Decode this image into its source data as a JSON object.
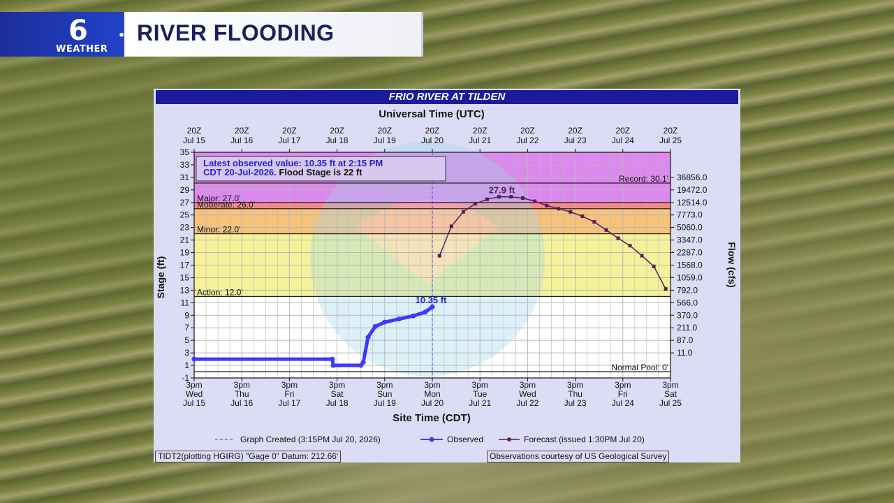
{
  "banner": {
    "logo_number": "6",
    "logo_word": "WEATHER",
    "title": "RIVER FLOODING"
  },
  "panel": {
    "title": "FRIO RIVER AT TILDEN",
    "utc_title": "Universal Time (UTC)",
    "site_time_title": "Site Time (CDT)",
    "footer_left": "TIDT2(plotting HGIRG) \"Gage 0\" Datum: 212.66'",
    "footer_right": "Observations courtesy of US Geological Survey",
    "info_line1": "Latest observed value: 10.35 ft at 2:15 PM",
    "info_line2a": "CDT 20-Jul-2026.",
    "info_line2b": " Flood Stage is 22 ft"
  },
  "chart_data": {
    "type": "line",
    "ylabel": "Stage (ft)",
    "y2label": "Flow (cfs)",
    "ylim": [
      -1,
      35
    ],
    "y_ticks": [
      -1,
      1,
      3,
      5,
      7,
      9,
      11,
      13,
      15,
      17,
      19,
      21,
      23,
      25,
      27,
      29,
      31,
      33,
      35
    ],
    "xlim_days": [
      "Jul 15 3pm",
      "Jul 25 3pm"
    ],
    "top_ticks": [
      {
        "top": "20Z",
        "bottom": "Jul 15"
      },
      {
        "top": "20Z",
        "bottom": "Jul 16"
      },
      {
        "top": "20Z",
        "bottom": "Jul 17"
      },
      {
        "top": "20Z",
        "bottom": "Jul 18"
      },
      {
        "top": "20Z",
        "bottom": "Jul 19"
      },
      {
        "top": "20Z",
        "bottom": "Jul 20"
      },
      {
        "top": "20Z",
        "bottom": "Jul 21"
      },
      {
        "top": "20Z",
        "bottom": "Jul 22"
      },
      {
        "top": "20Z",
        "bottom": "Jul 23"
      },
      {
        "top": "20Z",
        "bottom": "Jul 24"
      },
      {
        "top": "20Z",
        "bottom": "Jul 25"
      }
    ],
    "bottom_ticks": [
      {
        "time": "3pm",
        "day": "Wed",
        "date": "Jul 15"
      },
      {
        "time": "3pm",
        "day": "Thu",
        "date": "Jul 16"
      },
      {
        "time": "3pm",
        "day": "Fri",
        "date": "Jul 17"
      },
      {
        "time": "3pm",
        "day": "Sat",
        "date": "Jul 18"
      },
      {
        "time": "3pm",
        "day": "Sun",
        "date": "Jul 19"
      },
      {
        "time": "3pm",
        "day": "Mon",
        "date": "Jul 20"
      },
      {
        "time": "3pm",
        "day": "Tue",
        "date": "Jul 21"
      },
      {
        "time": "3pm",
        "day": "Wed",
        "date": "Jul 22"
      },
      {
        "time": "3pm",
        "day": "Thu",
        "date": "Jul 23"
      },
      {
        "time": "3pm",
        "day": "Fri",
        "date": "Jul 24"
      },
      {
        "time": "3pm",
        "day": "Sat",
        "date": "Jul 25"
      }
    ],
    "flow_ticks": [
      {
        "stage": 31,
        "label": "36856.0"
      },
      {
        "stage": 29,
        "label": "19472.0"
      },
      {
        "stage": 27,
        "label": "12514.0"
      },
      {
        "stage": 25,
        "label": "7773.0"
      },
      {
        "stage": 23,
        "label": "5060.0"
      },
      {
        "stage": 21,
        "label": "3347.0"
      },
      {
        "stage": 19,
        "label": "2287.0"
      },
      {
        "stage": 17,
        "label": "1568.0"
      },
      {
        "stage": 15,
        "label": "1059.0"
      },
      {
        "stage": 13,
        "label": "792.0"
      },
      {
        "stage": 11,
        "label": "566.0"
      },
      {
        "stage": 9,
        "label": "370.0"
      },
      {
        "stage": 7,
        "label": "211.0"
      },
      {
        "stage": 5,
        "label": "87.0"
      },
      {
        "stage": 3,
        "label": "11.0"
      }
    ],
    "categories_bands": [
      {
        "name": "Action",
        "from": 12,
        "to": 22,
        "color": "#f6f29a"
      },
      {
        "name": "Minor",
        "from": 22,
        "to": 26,
        "color": "#f7c27a"
      },
      {
        "name": "Moderate",
        "from": 26,
        "to": 27,
        "color": "#f08a8a"
      },
      {
        "name": "Major",
        "from": 27,
        "to": 35,
        "color": "#dd88ee"
      }
    ],
    "thresholds": [
      {
        "label": "Record: 30.1'",
        "value": 30.1,
        "side": "right"
      },
      {
        "label": "Major: 27.0'",
        "value": 27,
        "side": "left"
      },
      {
        "label": "Moderate: 26.0'",
        "value": 26,
        "side": "left"
      },
      {
        "label": "Minor: 22.0'",
        "value": 22,
        "side": "left"
      },
      {
        "label": "Action: 12.0'",
        "value": 12,
        "side": "left"
      },
      {
        "label": "Normal Pool: 0'",
        "value": 0,
        "side": "right"
      }
    ],
    "observed_day_x": [
      0,
      2.9,
      2.92,
      3.5,
      3.55,
      3.65,
      3.8,
      4.0,
      4.3,
      4.6,
      4.85,
      5.0
    ],
    "observed_stage": [
      2.0,
      2.0,
      1.0,
      1.0,
      1.5,
      5.5,
      7.2,
      7.9,
      8.4,
      8.9,
      9.5,
      10.35
    ],
    "forecast_day_x": [
      5.15,
      5.4,
      5.65,
      5.9,
      6.15,
      6.4,
      6.65,
      6.9,
      7.15,
      7.4,
      7.65,
      7.9,
      8.15,
      8.4,
      8.65,
      8.9,
      9.15,
      9.4,
      9.65,
      9.9
    ],
    "forecast_stage": [
      18.5,
      23.2,
      25.5,
      26.8,
      27.5,
      27.9,
      27.9,
      27.7,
      27.2,
      26.5,
      26.0,
      25.5,
      24.8,
      23.9,
      22.6,
      21.3,
      20.1,
      18.5,
      16.8,
      13.2
    ],
    "annotations": [
      {
        "text": "10.35 ft",
        "at_day": 5.0,
        "stage": 10.35
      },
      {
        "text": "27.9 ft",
        "at_day": 6.4,
        "stage": 27.9
      }
    ],
    "created_day_x": 5.0,
    "legend": {
      "created": "Graph Created (3:15PM Jul 20, 2026)",
      "observed": "Observed",
      "forecast": "Forecast (issued 1:30PM Jul 20)"
    },
    "colors": {
      "observed": "#3b3bff",
      "forecast": "#5a1a5a",
      "grid": "#b8b8b8"
    }
  }
}
